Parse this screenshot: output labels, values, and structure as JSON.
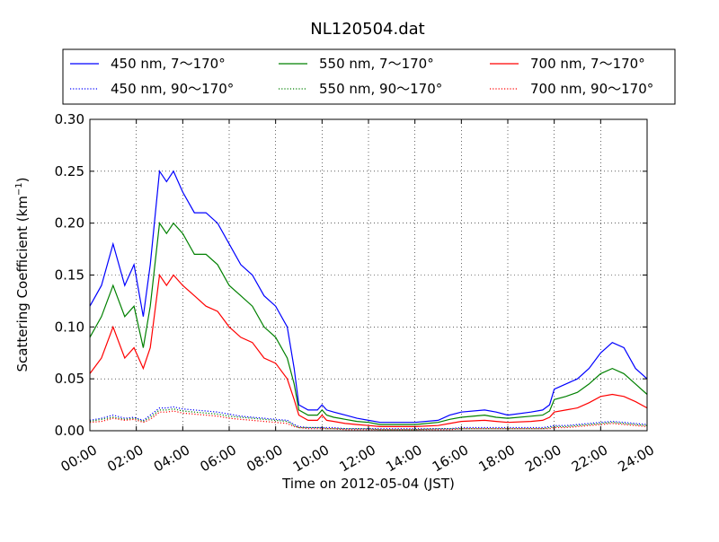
{
  "chart_data": {
    "type": "line",
    "title": "NL120504.dat",
    "xlabel": "Time on 2012-05-04 (JST)",
    "ylabel": "Scattering Coefficient (km",
    "ylabel_sup": "−1",
    "ylabel_end": ")",
    "x_unit": "hour",
    "xlim": [
      0,
      24
    ],
    "ylim": [
      0,
      0.3
    ],
    "grid": true,
    "legend_position": "top",
    "x_ticks": [
      0,
      2,
      4,
      6,
      8,
      10,
      12,
      14,
      16,
      18,
      20,
      22,
      24
    ],
    "x_tick_labels": [
      "00:00",
      "02:00",
      "04:00",
      "06:00",
      "08:00",
      "10:00",
      "12:00",
      "14:00",
      "16:00",
      "18:00",
      "20:00",
      "22:00",
      "24:00"
    ],
    "y_ticks": [
      0,
      0.05,
      0.1,
      0.15,
      0.2,
      0.25,
      0.3
    ],
    "y_tick_labels": [
      "0.00",
      "0.05",
      "0.10",
      "0.15",
      "0.20",
      "0.25",
      "0.30"
    ],
    "x": [
      0.0,
      0.5,
      1.0,
      1.5,
      1.9,
      2.3,
      2.6,
      3.0,
      3.3,
      3.6,
      4.0,
      4.5,
      5.0,
      5.5,
      6.0,
      6.5,
      7.0,
      7.5,
      8.0,
      8.5,
      8.8,
      9.0,
      9.4,
      9.8,
      10.0,
      10.2,
      10.5,
      11.0,
      11.5,
      12.0,
      12.5,
      13.0,
      14.0,
      15.0,
      15.5,
      16.0,
      17.0,
      17.5,
      18.0,
      19.0,
      19.5,
      19.8,
      20.0,
      20.5,
      21.0,
      21.5,
      22.0,
      22.5,
      23.0,
      23.5,
      24.0
    ],
    "series": [
      {
        "name": "450 nm, 7～170°",
        "color": "#0000ff",
        "style": "solid",
        "values": [
          0.12,
          0.14,
          0.18,
          0.14,
          0.16,
          0.11,
          0.16,
          0.25,
          0.24,
          0.25,
          0.23,
          0.21,
          0.21,
          0.2,
          0.18,
          0.16,
          0.15,
          0.13,
          0.12,
          0.1,
          0.06,
          0.025,
          0.02,
          0.02,
          0.025,
          0.02,
          0.018,
          0.015,
          0.012,
          0.01,
          0.008,
          0.008,
          0.008,
          0.01,
          0.015,
          0.018,
          0.02,
          0.018,
          0.015,
          0.018,
          0.02,
          0.025,
          0.04,
          0.045,
          0.05,
          0.06,
          0.075,
          0.085,
          0.08,
          0.06,
          0.05
        ]
      },
      {
        "name": "550 nm, 7～170°",
        "color": "#008000",
        "style": "solid",
        "values": [
          0.09,
          0.11,
          0.14,
          0.11,
          0.12,
          0.08,
          0.12,
          0.2,
          0.19,
          0.2,
          0.19,
          0.17,
          0.17,
          0.16,
          0.14,
          0.13,
          0.12,
          0.1,
          0.09,
          0.07,
          0.045,
          0.02,
          0.015,
          0.015,
          0.02,
          0.015,
          0.013,
          0.011,
          0.009,
          0.008,
          0.006,
          0.006,
          0.006,
          0.008,
          0.011,
          0.013,
          0.015,
          0.013,
          0.012,
          0.014,
          0.015,
          0.019,
          0.03,
          0.033,
          0.037,
          0.045,
          0.055,
          0.06,
          0.055,
          0.045,
          0.035
        ]
      },
      {
        "name": "700 nm, 7～170°",
        "color": "#ff0000",
        "style": "solid",
        "values": [
          0.055,
          0.07,
          0.1,
          0.07,
          0.08,
          0.06,
          0.08,
          0.15,
          0.14,
          0.15,
          0.14,
          0.13,
          0.12,
          0.115,
          0.1,
          0.09,
          0.085,
          0.07,
          0.065,
          0.05,
          0.03,
          0.015,
          0.01,
          0.01,
          0.015,
          0.01,
          0.009,
          0.007,
          0.006,
          0.005,
          0.004,
          0.004,
          0.004,
          0.005,
          0.007,
          0.009,
          0.01,
          0.009,
          0.008,
          0.009,
          0.01,
          0.013,
          0.018,
          0.02,
          0.022,
          0.027,
          0.033,
          0.035,
          0.033,
          0.028,
          0.022
        ]
      },
      {
        "name": "450 nm, 90～170°",
        "color": "#0000ff",
        "style": "dotted",
        "values": [
          0.01,
          0.012,
          0.015,
          0.012,
          0.013,
          0.01,
          0.015,
          0.022,
          0.022,
          0.023,
          0.021,
          0.02,
          0.019,
          0.018,
          0.016,
          0.014,
          0.013,
          0.012,
          0.011,
          0.01,
          0.006,
          0.004,
          0.003,
          0.003,
          0.003,
          0.003,
          0.003,
          0.002,
          0.002,
          0.002,
          0.002,
          0.002,
          0.002,
          0.002,
          0.002,
          0.003,
          0.003,
          0.003,
          0.003,
          0.003,
          0.003,
          0.004,
          0.005,
          0.005,
          0.006,
          0.007,
          0.008,
          0.009,
          0.008,
          0.007,
          0.006
        ]
      },
      {
        "name": "550 nm, 90～170°",
        "color": "#008000",
        "style": "dotted",
        "values": [
          0.009,
          0.011,
          0.013,
          0.011,
          0.012,
          0.009,
          0.013,
          0.02,
          0.02,
          0.021,
          0.019,
          0.018,
          0.017,
          0.016,
          0.014,
          0.013,
          0.012,
          0.011,
          0.01,
          0.009,
          0.005,
          0.003,
          0.003,
          0.003,
          0.003,
          0.002,
          0.002,
          0.002,
          0.002,
          0.002,
          0.001,
          0.001,
          0.001,
          0.002,
          0.002,
          0.002,
          0.002,
          0.002,
          0.002,
          0.002,
          0.002,
          0.003,
          0.004,
          0.004,
          0.005,
          0.006,
          0.007,
          0.008,
          0.007,
          0.006,
          0.005
        ]
      },
      {
        "name": "700 nm, 90～170°",
        "color": "#ff0000",
        "style": "dotted",
        "values": [
          0.008,
          0.009,
          0.012,
          0.01,
          0.011,
          0.008,
          0.011,
          0.018,
          0.018,
          0.019,
          0.017,
          0.016,
          0.015,
          0.014,
          0.012,
          0.011,
          0.01,
          0.009,
          0.008,
          0.007,
          0.004,
          0.003,
          0.002,
          0.002,
          0.002,
          0.002,
          0.002,
          0.001,
          0.001,
          0.001,
          0.001,
          0.001,
          0.001,
          0.001,
          0.001,
          0.002,
          0.002,
          0.002,
          0.002,
          0.002,
          0.002,
          0.002,
          0.003,
          0.003,
          0.004,
          0.005,
          0.006,
          0.007,
          0.006,
          0.005,
          0.004
        ]
      }
    ]
  }
}
